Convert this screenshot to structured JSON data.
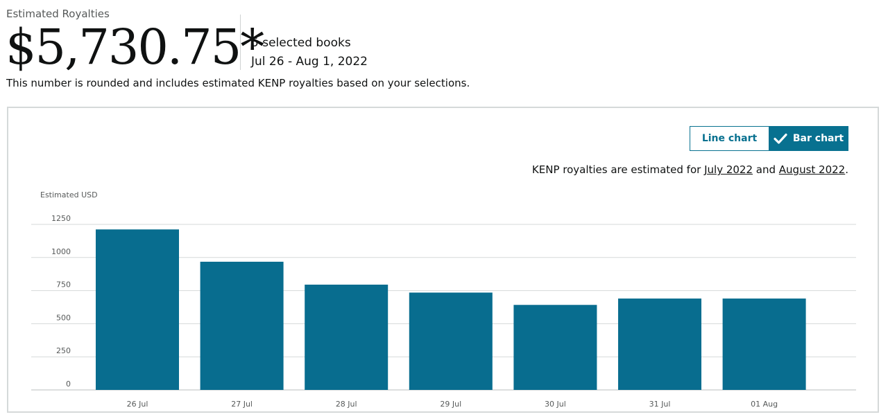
{
  "header": {
    "estimated_label": "Estimated Royalties",
    "amount": "$5,730.75*",
    "selected_books": "5 selected books",
    "date_range": "Jul 26 - Aug 1, 2022",
    "note": "This number is rounded and includes estimated KENP royalties based on your selections."
  },
  "controls": {
    "line_chart_label": "Line chart",
    "bar_chart_label": "Bar chart",
    "active": "bar"
  },
  "kenp_note": {
    "prefix": "KENP royalties are estimated for ",
    "link1": "July 2022",
    "middle": " and ",
    "link2": "August 2022",
    "suffix": "."
  },
  "colors": {
    "bar": "#086d8f",
    "accent": "#087190",
    "grid": "#d5d9d9"
  },
  "chart_data": {
    "type": "bar",
    "ylabel": "Estimated USD",
    "categories": [
      "26 Jul",
      "27 Jul",
      "28 Jul",
      "29 Jul",
      "30 Jul",
      "31 Jul",
      "01 Aug"
    ],
    "values": [
      1212,
      968,
      795,
      735,
      642,
      690,
      690
    ],
    "ylim": [
      0,
      1250
    ],
    "yticks": [
      0,
      250,
      500,
      750,
      1000,
      1250
    ],
    "grid": true
  }
}
